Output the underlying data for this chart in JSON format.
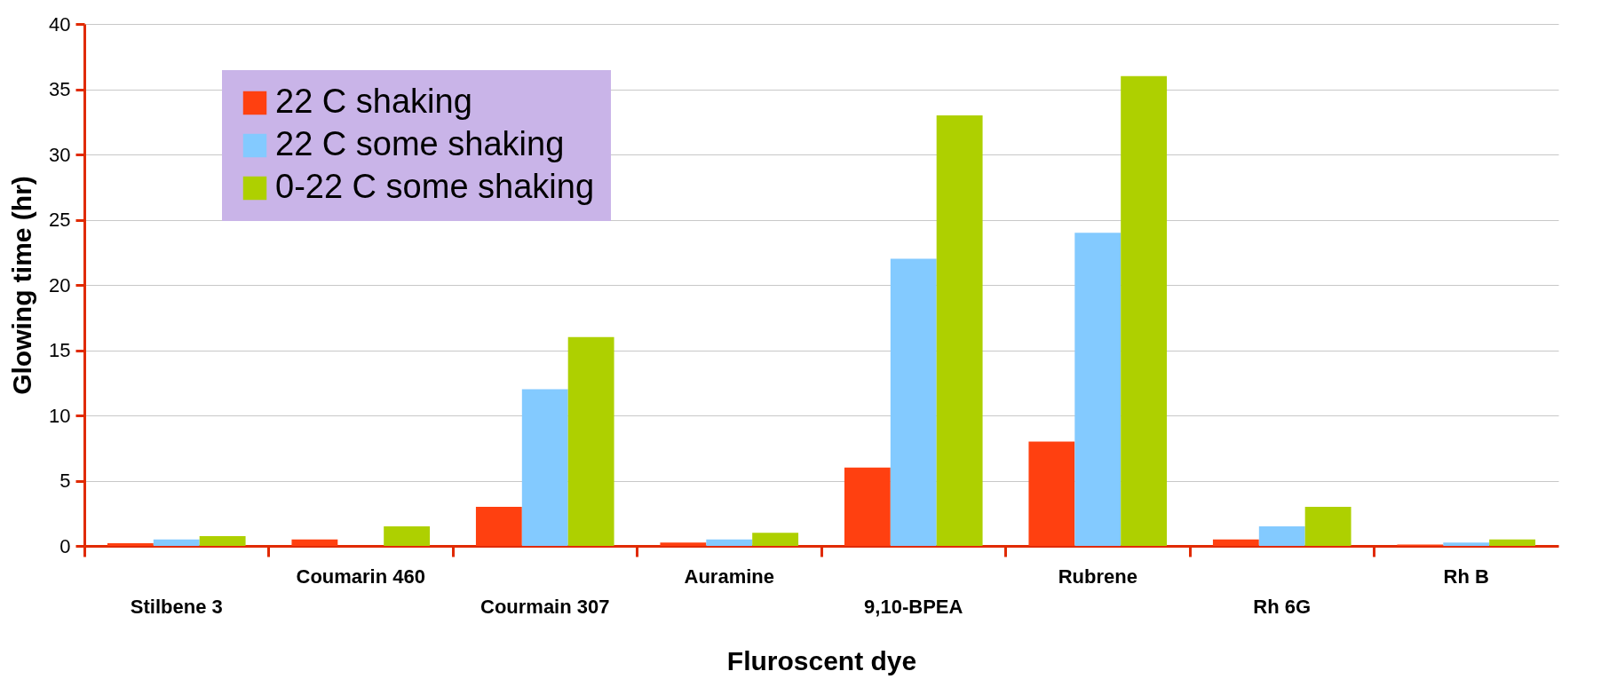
{
  "chart_data": {
    "type": "bar",
    "xlabel": "Fluroscent dye",
    "ylabel": "Glowing time (hr)",
    "categories": [
      "Stilbene 3",
      "Coumarin 460",
      "Courmain 307",
      "Auramine",
      "9,10-BPEA",
      "Rubrene",
      "Rh 6G",
      "Rh B"
    ],
    "series": [
      {
        "name": "22 C shaking",
        "color": "#ff4010",
        "values": [
          0.2,
          0.5,
          3,
          0.25,
          6,
          8,
          0.5,
          0.1
        ]
      },
      {
        "name": "22 C some shaking",
        "color": "#83caff",
        "values": [
          0.5,
          0,
          12,
          0.5,
          22,
          24,
          1.5,
          0.25
        ]
      },
      {
        "name": "0-22 C some shaking",
        "color": "#aed000",
        "values": [
          0.75,
          1.5,
          16,
          1,
          33,
          36,
          3,
          0.5
        ]
      }
    ],
    "ylim": [
      0,
      40
    ],
    "yticks": [
      0,
      5,
      10,
      15,
      20,
      25,
      30,
      35,
      40
    ],
    "grid": "y",
    "legend": "top left"
  }
}
